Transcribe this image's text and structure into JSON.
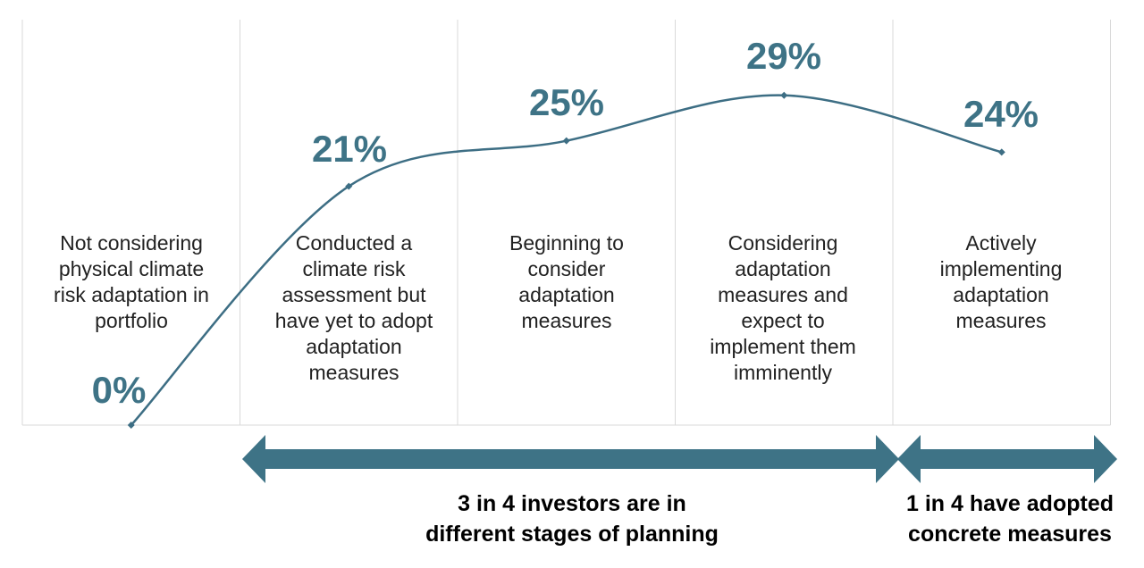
{
  "chart_data": {
    "type": "line",
    "categories": [
      "Not considering physical climate risk adaptation in portfolio",
      "Conducted a climate risk assessment but have yet to adopt adaptation measures",
      "Beginning to consider adaptation measures",
      "Considering adaptation measures and expect to implement them imminently",
      "Actively implementing adaptation measures"
    ],
    "values": [
      0,
      21,
      25,
      29,
      24
    ],
    "value_labels": [
      "0%",
      "21%",
      "25%",
      "29%",
      "24%"
    ],
    "ylim": [
      0,
      30
    ],
    "smooth": true
  },
  "summary": {
    "planning_line1": "3 in 4 investors are in",
    "planning_line2": "different stages of planning",
    "adopted_line1": "1 in 4 have adopted",
    "adopted_line2": "concrete measures"
  },
  "colors": {
    "line": "#3d6e84",
    "label": "#3e7386",
    "arrow": "#3e7386",
    "divider": "#d9d9d9"
  }
}
